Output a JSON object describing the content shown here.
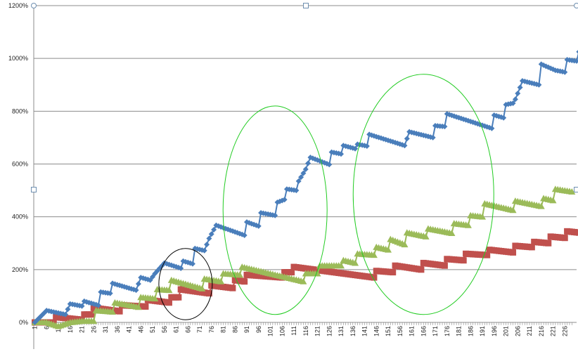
{
  "chart_data": {
    "type": "line",
    "y_tick_labels": [
      "0%",
      "200%",
      "400%",
      "600%",
      "800%",
      "1000%",
      "1200%"
    ],
    "ylim": [
      0,
      1200
    ],
    "x_range": [
      1,
      229
    ],
    "x_tick_labels": [
      "1",
      "6",
      "11",
      "16",
      "21",
      "26",
      "31",
      "36",
      "41",
      "46",
      "51",
      "56",
      "61",
      "66",
      "71",
      "76",
      "81",
      "86",
      "91",
      "96",
      "101",
      "106",
      "111",
      "116",
      "121",
      "126",
      "131",
      "136",
      "141",
      "146",
      "151",
      "156",
      "161",
      "166",
      "171",
      "176",
      "181",
      "186",
      "191",
      "196",
      "201",
      "206",
      "211",
      "216",
      "221",
      "226"
    ],
    "grid": "horizontal",
    "series": [
      {
        "color": "#4a7ebb",
        "marker": "diamond",
        "points": [
          [
            1,
            0
          ],
          [
            6,
            45
          ],
          [
            14,
            30
          ],
          [
            16,
            70
          ],
          [
            21,
            62
          ],
          [
            22,
            80
          ],
          [
            28,
            65
          ],
          [
            29,
            115
          ],
          [
            33,
            110
          ],
          [
            34,
            148
          ],
          [
            44,
            122
          ],
          [
            46,
            170
          ],
          [
            50,
            160
          ],
          [
            52,
            185
          ],
          [
            56,
            225
          ],
          [
            63,
            205
          ],
          [
            64,
            232
          ],
          [
            68,
            222
          ],
          [
            69,
            280
          ],
          [
            73,
            272
          ],
          [
            75,
            318
          ],
          [
            78,
            368
          ],
          [
            90,
            330
          ],
          [
            91,
            380
          ],
          [
            96,
            365
          ],
          [
            97,
            415
          ],
          [
            103,
            405
          ],
          [
            104,
            455
          ],
          [
            107,
            465
          ],
          [
            108,
            505
          ],
          [
            112,
            500
          ],
          [
            113,
            535
          ],
          [
            116,
            580
          ],
          [
            118,
            625
          ],
          [
            126,
            598
          ],
          [
            127,
            645
          ],
          [
            131,
            638
          ],
          [
            132,
            670
          ],
          [
            137,
            658
          ],
          [
            138,
            675
          ],
          [
            142,
            668
          ],
          [
            143,
            712
          ],
          [
            158,
            670
          ],
          [
            160,
            722
          ],
          [
            170,
            700
          ],
          [
            171,
            745
          ],
          [
            175,
            742
          ],
          [
            176,
            790
          ],
          [
            195,
            735
          ],
          [
            196,
            785
          ],
          [
            200,
            775
          ],
          [
            201,
            825
          ],
          [
            204,
            830
          ],
          [
            205,
            845
          ],
          [
            207,
            890
          ],
          [
            208,
            915
          ],
          [
            215,
            900
          ],
          [
            216,
            978
          ],
          [
            222,
            955
          ],
          [
            226,
            948
          ],
          [
            227,
            995
          ],
          [
            231,
            990
          ],
          [
            232,
            1025
          ]
        ]
      },
      {
        "color": "#9bbb59",
        "marker": "triangle",
        "points": [
          [
            1,
            0
          ],
          [
            6,
            0
          ],
          [
            11,
            -15
          ],
          [
            16,
            0
          ],
          [
            21,
            5
          ],
          [
            26,
            5
          ],
          [
            27,
            45
          ],
          [
            34,
            40
          ],
          [
            35,
            75
          ],
          [
            45,
            58
          ],
          [
            46,
            95
          ],
          [
            52,
            90
          ],
          [
            53,
            125
          ],
          [
            58,
            122
          ],
          [
            59,
            160
          ],
          [
            72,
            128
          ],
          [
            73,
            165
          ],
          [
            80,
            155
          ],
          [
            81,
            185
          ],
          [
            88,
            180
          ],
          [
            89,
            210
          ],
          [
            115,
            155
          ],
          [
            116,
            185
          ],
          [
            121,
            185
          ],
          [
            122,
            215
          ],
          [
            131,
            215
          ],
          [
            132,
            235
          ],
          [
            137,
            225
          ],
          [
            138,
            260
          ],
          [
            145,
            255
          ],
          [
            146,
            285
          ],
          [
            151,
            275
          ],
          [
            152,
            315
          ],
          [
            158,
            295
          ],
          [
            159,
            340
          ],
          [
            167,
            325
          ],
          [
            168,
            355
          ],
          [
            178,
            338
          ],
          [
            179,
            375
          ],
          [
            185,
            368
          ],
          [
            186,
            405
          ],
          [
            191,
            400
          ],
          [
            192,
            450
          ],
          [
            204,
            425
          ],
          [
            205,
            460
          ],
          [
            216,
            440
          ],
          [
            217,
            470
          ],
          [
            221,
            462
          ],
          [
            222,
            505
          ],
          [
            229,
            495
          ]
        ]
      },
      {
        "color": "#c0504d",
        "marker": "square",
        "points": [
          [
            1,
            0
          ],
          [
            9,
            0
          ],
          [
            10,
            20
          ],
          [
            21,
            10
          ],
          [
            22,
            30
          ],
          [
            25,
            30
          ],
          [
            26,
            55
          ],
          [
            37,
            42
          ],
          [
            38,
            65
          ],
          [
            48,
            60
          ],
          [
            49,
            85
          ],
          [
            58,
            75
          ],
          [
            59,
            95
          ],
          [
            62,
            95
          ],
          [
            63,
            125
          ],
          [
            75,
            110
          ],
          [
            76,
            140
          ],
          [
            85,
            130
          ],
          [
            86,
            160
          ],
          [
            90,
            155
          ],
          [
            91,
            180
          ],
          [
            106,
            170
          ],
          [
            107,
            190
          ],
          [
            110,
            190
          ],
          [
            111,
            210
          ],
          [
            145,
            170
          ],
          [
            146,
            195
          ],
          [
            153,
            190
          ],
          [
            154,
            215
          ],
          [
            165,
            200
          ],
          [
            166,
            225
          ],
          [
            175,
            215
          ],
          [
            176,
            240
          ],
          [
            183,
            235
          ],
          [
            184,
            260
          ],
          [
            193,
            255
          ],
          [
            194,
            275
          ],
          [
            204,
            265
          ],
          [
            205,
            290
          ],
          [
            212,
            285
          ],
          [
            213,
            305
          ],
          [
            219,
            300
          ],
          [
            220,
            325
          ],
          [
            226,
            320
          ],
          [
            227,
            345
          ],
          [
            232,
            340
          ]
        ]
      }
    ],
    "annotations": [
      {
        "shape": "ellipse",
        "color": "#000000",
        "x_center": 65,
        "y_center": 145,
        "x_radius": 9.5,
        "y_radius": 135
      },
      {
        "shape": "ellipse",
        "color": "#22cc22",
        "x_center": 103,
        "y_center": 425,
        "x_radius": 18.5,
        "y_radius": 395
      },
      {
        "shape": "ellipse",
        "color": "#22cc22",
        "x_center": 166,
        "y_center": 485,
        "x_radius": 25,
        "y_radius": 455
      }
    ]
  }
}
